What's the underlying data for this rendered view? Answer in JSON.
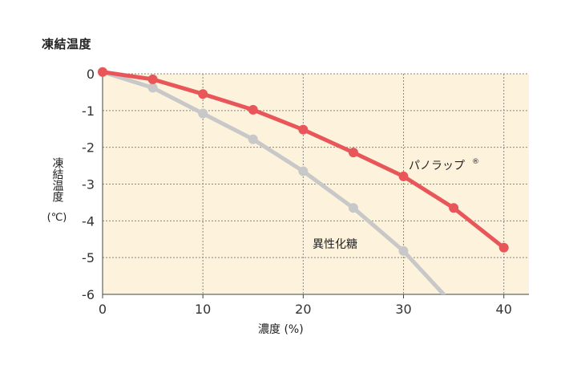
{
  "chart_data": {
    "type": "line",
    "title": "凍結温度",
    "ylabel": "凍結温度",
    "ylabel_unit": "(℃)",
    "xlabel": "濃度 (%)",
    "xlim": [
      0,
      42.5
    ],
    "ylim": [
      -6,
      0
    ],
    "x_ticks": [
      0,
      10,
      20,
      30,
      40
    ],
    "y_ticks": [
      0,
      -1,
      -2,
      -3,
      -4,
      -5,
      -6
    ],
    "grid": "dashed",
    "plot_background": "#fdf2dc",
    "series": [
      {
        "name": "パノラップ®",
        "color": "#e8565a",
        "x": [
          0,
          5,
          10,
          15,
          20,
          25,
          30,
          35,
          40
        ],
        "y": [
          0.05,
          -0.15,
          -0.55,
          -0.98,
          -1.52,
          -2.14,
          -2.79,
          -3.65,
          -4.73
        ]
      },
      {
        "name": "異性化糖",
        "color": "#c8c8c8",
        "x": [
          0,
          5,
          10,
          15,
          20,
          25,
          30,
          34
        ],
        "y": [
          0.05,
          -0.38,
          -1.08,
          -1.78,
          -2.65,
          -3.65,
          -4.82,
          -6.0
        ],
        "markers_at": [
          5,
          10,
          15,
          20,
          25,
          30
        ]
      }
    ]
  }
}
